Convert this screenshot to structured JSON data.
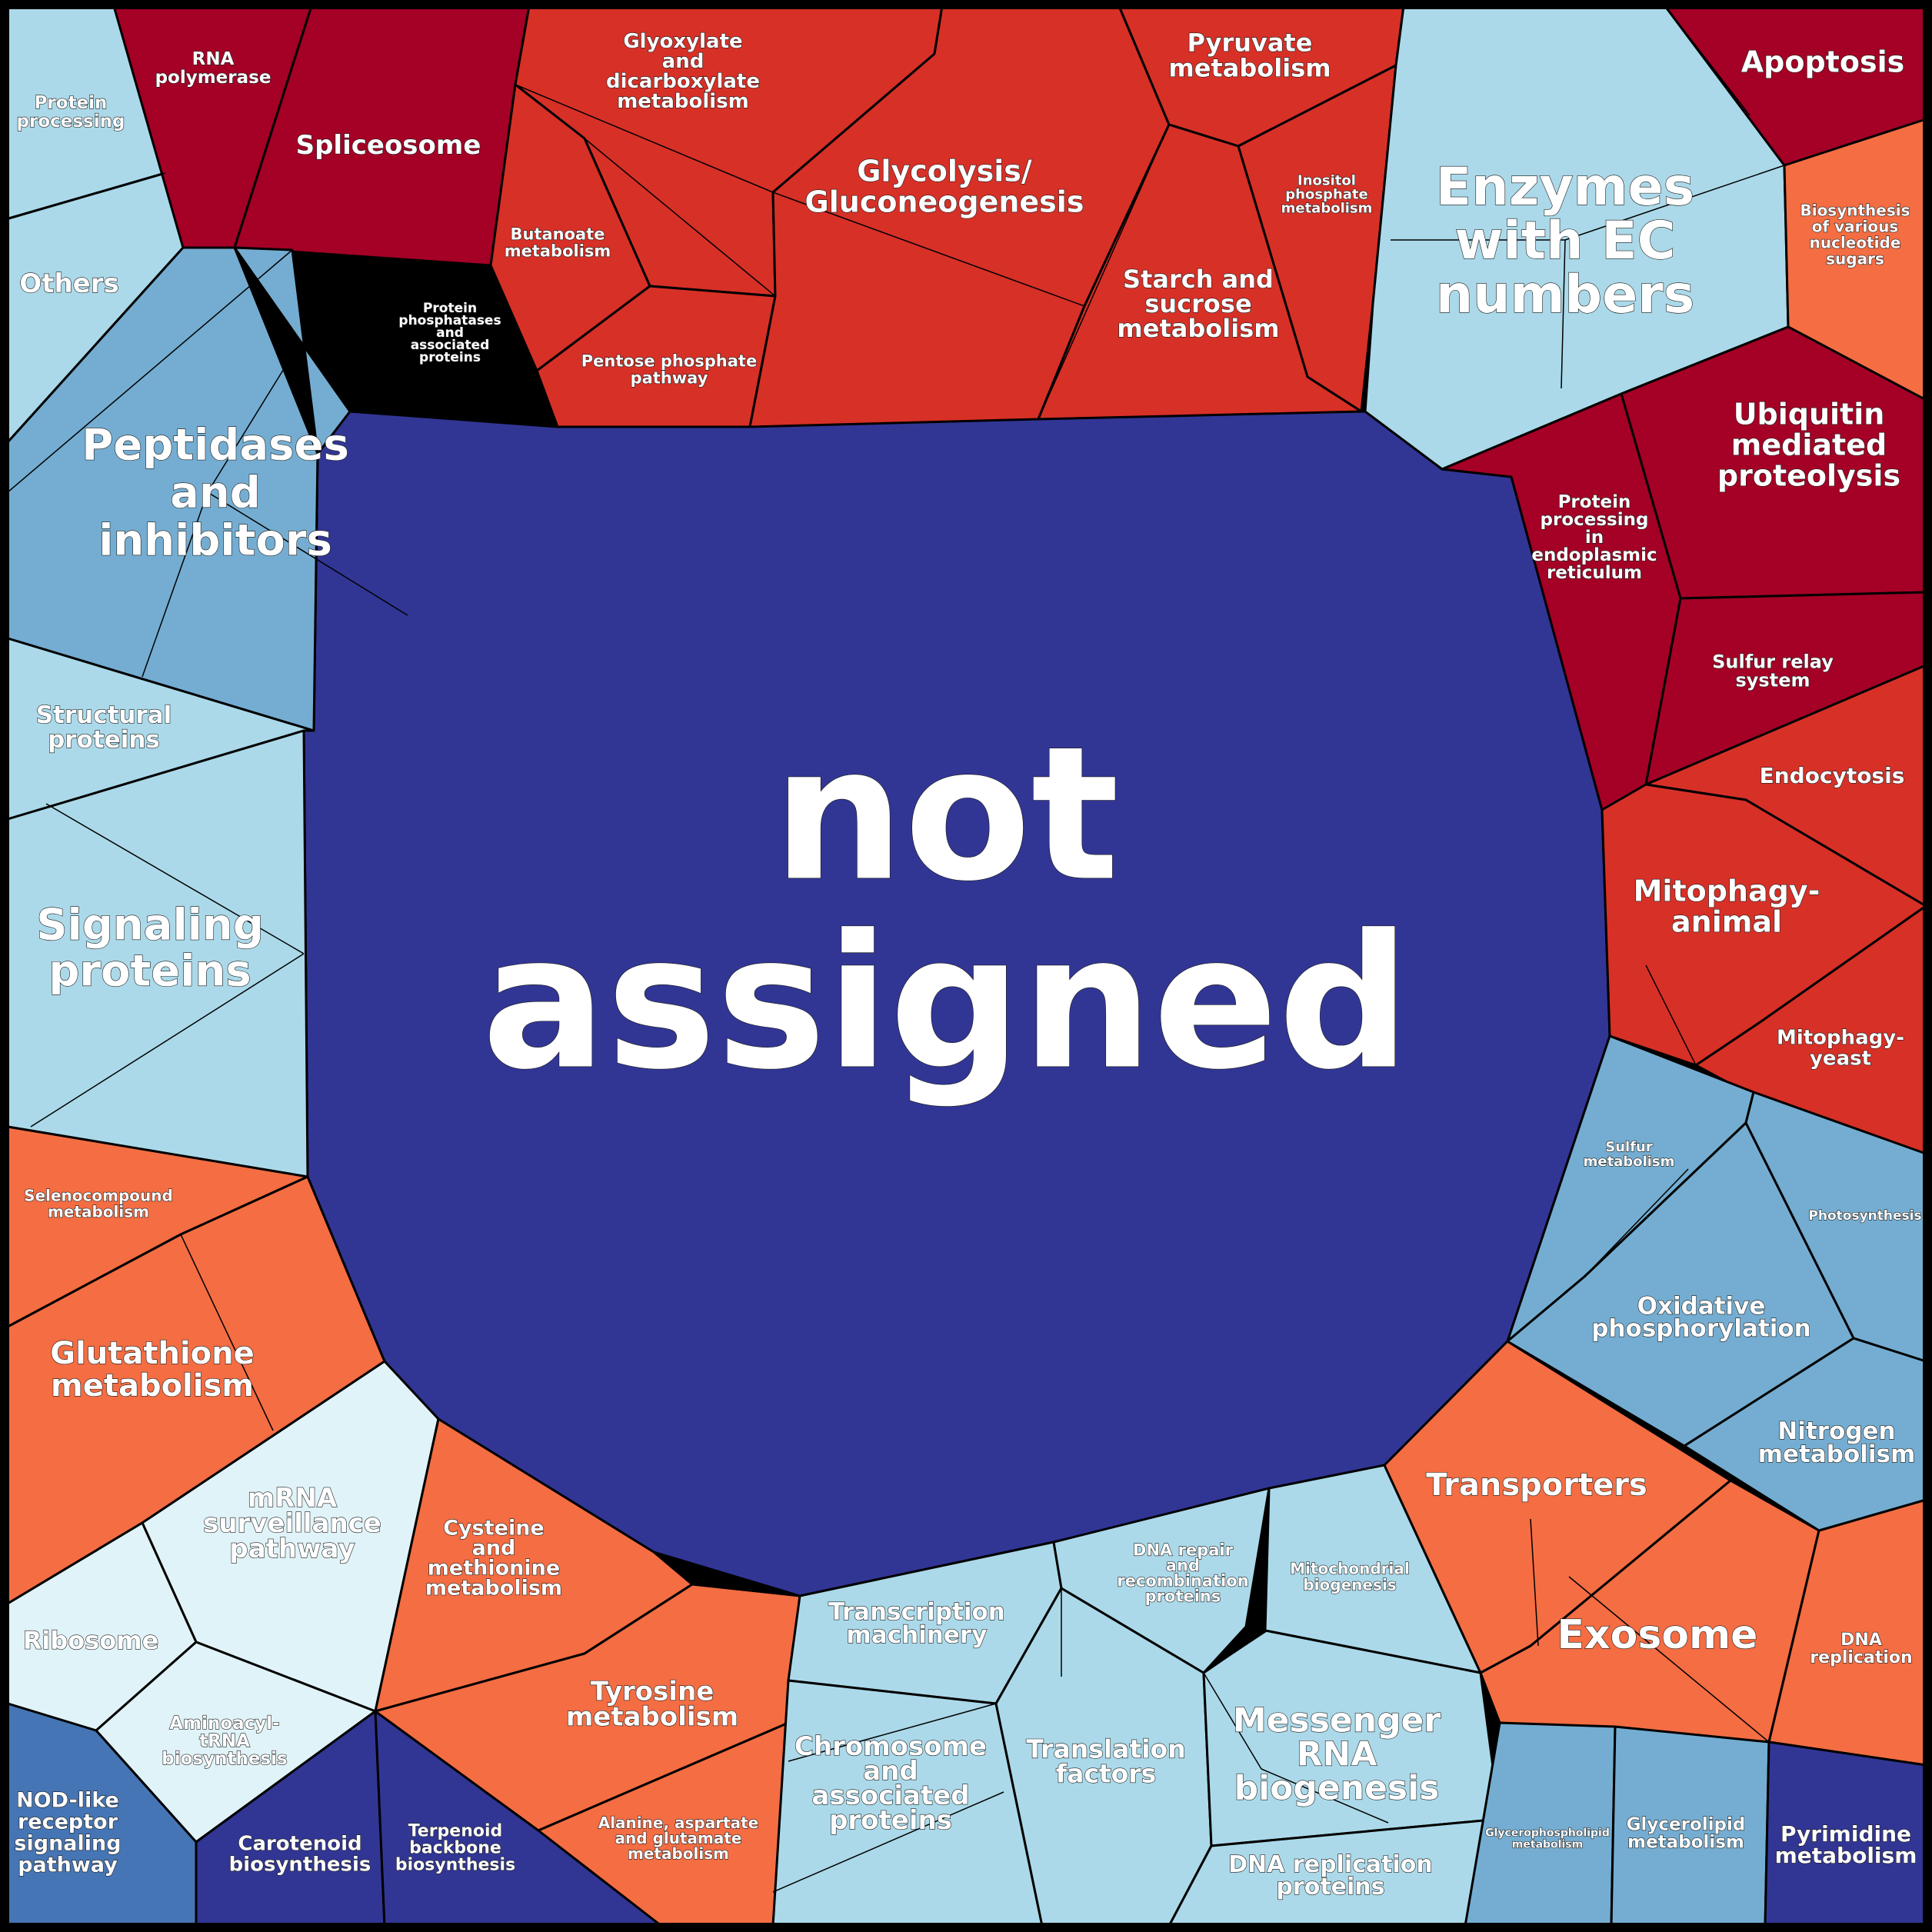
{
  "colors": {
    "dark_red": "#a50026",
    "red": "#d73027",
    "orange": "#f46d43",
    "light_blue": "#abd9e9",
    "pale_blue": "#e0f3f8",
    "mid_blue": "#74add1",
    "steel_blue": "#4575b4",
    "navy": "#313695"
  },
  "cells": [
    {
      "id": "not-assigned",
      "lines": [
        "not",
        "assigned"
      ]
    },
    {
      "id": "protein-processing",
      "lines": [
        "Protein",
        "processing"
      ]
    },
    {
      "id": "others",
      "lines": [
        "Others"
      ]
    },
    {
      "id": "rna-polymerase",
      "lines": [
        "RNA",
        "polymerase"
      ]
    },
    {
      "id": "spliceosome",
      "lines": [
        "Spliceosome"
      ]
    },
    {
      "id": "glyoxylate",
      "lines": [
        "Glyoxylate",
        "and",
        "dicarboxylate",
        "metabolism"
      ]
    },
    {
      "id": "butanoate",
      "lines": [
        "Butanoate",
        "metabolism"
      ]
    },
    {
      "id": "pentose-phosphate",
      "lines": [
        "Pentose phosphate",
        "pathway"
      ]
    },
    {
      "id": "glycolysis",
      "lines": [
        "Glycolysis/",
        "Gluconeogenesis"
      ]
    },
    {
      "id": "pyruvate",
      "lines": [
        "Pyruvate",
        "metabolism"
      ]
    },
    {
      "id": "inositol-phosphate",
      "lines": [
        "Inositol",
        "phosphate",
        "metabolism"
      ]
    },
    {
      "id": "starch-sucrose",
      "lines": [
        "Starch and",
        "sucrose",
        "metabolism"
      ]
    },
    {
      "id": "enzymes-ec",
      "lines": [
        "Enzymes",
        "with EC",
        "numbers"
      ]
    },
    {
      "id": "apoptosis",
      "lines": [
        "Apoptosis"
      ]
    },
    {
      "id": "nucleotide-sugars",
      "lines": [
        "Biosynthesis",
        "of various",
        "nucleotide",
        "sugars"
      ]
    },
    {
      "id": "ubiquitin",
      "lines": [
        "Ubiquitin",
        "mediated",
        "proteolysis"
      ]
    },
    {
      "id": "protein-processing-er",
      "lines": [
        "Protein",
        "processing",
        "in",
        "endoplasmic",
        "reticulum"
      ]
    },
    {
      "id": "sulfur-relay",
      "lines": [
        "Sulfur relay",
        "system"
      ]
    },
    {
      "id": "endocytosis",
      "lines": [
        "Endocytosis"
      ]
    },
    {
      "id": "mitophagy-animal",
      "lines": [
        "Mitophagy-",
        "animal"
      ]
    },
    {
      "id": "mitophagy-yeast",
      "lines": [
        "Mitophagy-",
        "yeast"
      ]
    },
    {
      "id": "protein-phosphatases",
      "lines": [
        "Protein",
        "phosphatases",
        "and",
        "associated",
        "proteins"
      ]
    },
    {
      "id": "peptidases",
      "lines": [
        "Peptidases",
        "and",
        "inhibitors"
      ]
    },
    {
      "id": "structural-proteins",
      "lines": [
        "Structural",
        "proteins"
      ]
    },
    {
      "id": "signaling-proteins",
      "lines": [
        "Signaling",
        "proteins"
      ]
    },
    {
      "id": "selenocompound",
      "lines": [
        "Selenocompound",
        "metabolism"
      ]
    },
    {
      "id": "glutathione",
      "lines": [
        "Glutathione",
        "metabolism"
      ]
    },
    {
      "id": "mrna-surveillance",
      "lines": [
        "mRNA",
        "surveillance",
        "pathway"
      ]
    },
    {
      "id": "ribosome",
      "lines": [
        "Ribosome"
      ]
    },
    {
      "id": "aminoacyl-trna",
      "lines": [
        "Aminoacyl-",
        "tRNA",
        "biosynthesis"
      ]
    },
    {
      "id": "nod-like",
      "lines": [
        "NOD-like",
        "receptor",
        "signaling",
        "pathway"
      ]
    },
    {
      "id": "carotenoid",
      "lines": [
        "Carotenoid",
        "biosynthesis"
      ]
    },
    {
      "id": "terpenoid-backbone",
      "lines": [
        "Terpenoid",
        "backbone",
        "biosynthesis"
      ]
    },
    {
      "id": "cysteine-methionine",
      "lines": [
        "Cysteine",
        "and",
        "methionine",
        "metabolism"
      ]
    },
    {
      "id": "tyrosine",
      "lines": [
        "Tyrosine",
        "metabolism"
      ]
    },
    {
      "id": "alanine-aspartate",
      "lines": [
        "Alanine, aspartate",
        "and glutamate",
        "metabolism"
      ]
    },
    {
      "id": "transcription-machinery",
      "lines": [
        "Transcription",
        "machinery"
      ]
    },
    {
      "id": "chromosome",
      "lines": [
        "Chromosome",
        "and",
        "associated",
        "proteins"
      ]
    },
    {
      "id": "translation-factors",
      "lines": [
        "Translation",
        "factors"
      ]
    },
    {
      "id": "dna-repair",
      "lines": [
        "DNA repair",
        "and",
        "recombination",
        "proteins"
      ]
    },
    {
      "id": "mitochondrial-biogenesis",
      "lines": [
        "Mitochondrial",
        "biogenesis"
      ]
    },
    {
      "id": "messenger-rna",
      "lines": [
        "Messenger",
        "RNA",
        "biogenesis"
      ]
    },
    {
      "id": "dna-replication-proteins",
      "lines": [
        "DNA replication",
        "proteins"
      ]
    },
    {
      "id": "transporters",
      "lines": [
        "Transporters"
      ]
    },
    {
      "id": "exosome",
      "lines": [
        "Exosome"
      ]
    },
    {
      "id": "dna-replication",
      "lines": [
        "DNA",
        "replication"
      ]
    },
    {
      "id": "glycerophospholipid",
      "lines": [
        "Glycerophospholipid",
        "metabolism"
      ]
    },
    {
      "id": "glycerolipid",
      "lines": [
        "Glycerolipid",
        "metabolism"
      ]
    },
    {
      "id": "pyrimidine",
      "lines": [
        "Pyrimidine",
        "metabolism"
      ]
    },
    {
      "id": "sulfur-metabolism",
      "lines": [
        "Sulfur",
        "metabolism"
      ]
    },
    {
      "id": "photosynthesis",
      "lines": [
        "Photosynthesis"
      ]
    },
    {
      "id": "oxidative-phosphorylation",
      "lines": [
        "Oxidative",
        "phosphorylation"
      ]
    },
    {
      "id": "nitrogen-metabolism",
      "lines": [
        "Nitrogen",
        "metabolism"
      ]
    }
  ]
}
